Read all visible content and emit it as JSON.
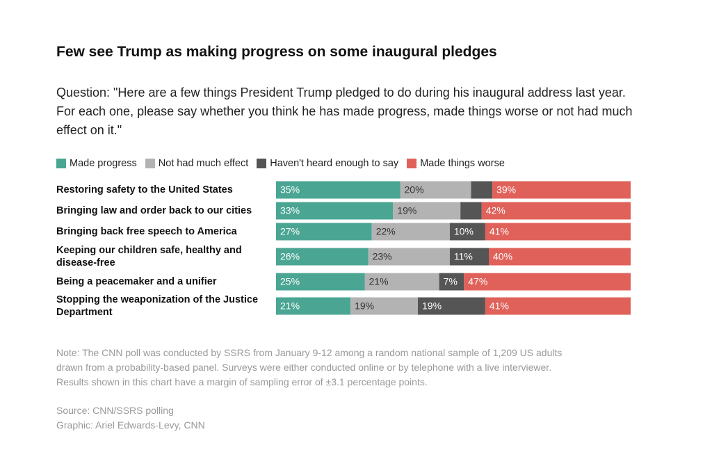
{
  "chart_data": {
    "type": "bar",
    "stacked": true,
    "orientation": "horizontal",
    "title": "Few see Trump as making progress on some inaugural pledges",
    "subtitle": "Question: \"Here are a few things President Trump pledged to do during his inaugural address last year. For each one, please say whether you think he has made progress, made things worse or not had much effect on it.\"",
    "categories": [
      "Restoring safety to the United States",
      "Bringing law and order back to our cities",
      "Bringing back free speech to America",
      "Keeping our children safe, healthy and disease-free",
      "Being a peacemaker and a unifier",
      "Stopping the weaponization of the Justice Department"
    ],
    "xlim": [
      0,
      100
    ],
    "series": [
      {
        "name": "Made progress",
        "color": "#4aa593",
        "label_color": "#ffffff",
        "values": [
          35,
          33,
          27,
          26,
          25,
          21
        ],
        "value_labels": [
          "35%",
          "33%",
          "27%",
          "26%",
          "25%",
          "21%"
        ]
      },
      {
        "name": "Not had much effect",
        "color": "#b3b3b3",
        "label_color": "#333333",
        "values": [
          20,
          19,
          22,
          23,
          21,
          19
        ],
        "value_labels": [
          "20%",
          "19%",
          "22%",
          "23%",
          "21%",
          "19%"
        ]
      },
      {
        "name": "Haven't heard enough to say",
        "color": "#555555",
        "label_color": "#ffffff",
        "values": [
          6,
          6,
          10,
          11,
          7,
          19
        ],
        "value_labels": [
          null,
          null,
          "10%",
          "11%",
          "7%",
          "19%"
        ]
      },
      {
        "name": "Made things worse",
        "color": "#e0615a",
        "label_color": "#ffffff",
        "values": [
          39,
          42,
          41,
          40,
          47,
          41
        ],
        "value_labels": [
          "39%",
          "42%",
          "41%",
          "40%",
          "47%",
          "41%"
        ]
      }
    ],
    "notes": [
      "Note: The CNN poll was conducted by SSRS from January 9-12 among a random national sample of 1,209 US adults",
      "drawn from a probability-based panel. Surveys were either conducted online or by telephone with a live interviewer.",
      "Results shown in this chart have a margin of sampling error of ±3.1 percentage points."
    ],
    "credits": [
      "Source: CNN/SSRS polling",
      "Graphic: Ariel Edwards-Levy, CNN"
    ]
  }
}
